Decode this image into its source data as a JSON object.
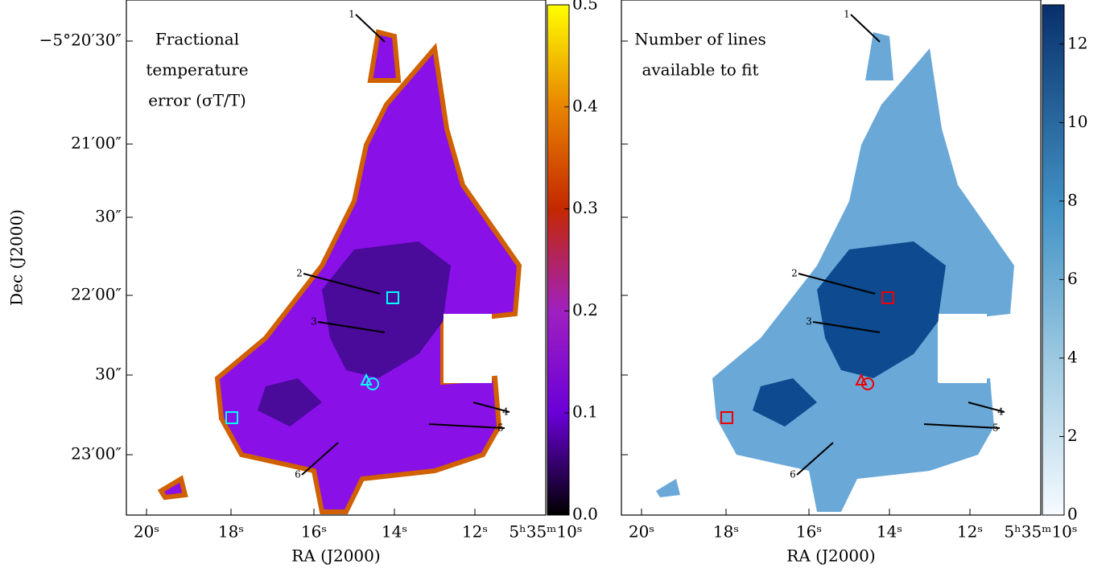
{
  "chart_data": [
    {
      "type": "heatmap",
      "annotation_lines": [
        "Fractional",
        "temperature",
        "error (σT/T)"
      ],
      "xlabel": "RA (J2000)",
      "ylabel": "Dec (J2000)",
      "xtick_labels": [
        "20ˢ",
        "18ˢ",
        "16ˢ",
        "14ˢ",
        "12ˢ",
        "5ʰ35ᵐ10ˢ"
      ],
      "ytick_labels": [
        "−5°20′30″",
        "21′00″",
        "30″",
        "22′00″",
        "30″",
        "23′00″"
      ],
      "markers": [
        "1",
        "2",
        "3",
        "4",
        "5",
        "6"
      ],
      "colormap": "gnuplot",
      "clim": [
        0,
        0.5
      ],
      "cticks": [
        {
          "value": 0,
          "label": "0.0"
        },
        0.1,
        0.2,
        0.3,
        0.4,
        0.5
      ]
    },
    {
      "type": "heatmap",
      "annotation_lines": [
        "Number of lines",
        "available to fit"
      ],
      "xlabel": "RA (J2000)",
      "xtick_labels": [
        "20ˢ",
        "18ˢ",
        "16ˢ",
        "14ˢ",
        "12ˢ",
        "5ʰ35ᵐ10ˢ"
      ],
      "markers": [
        "1",
        "2",
        "3",
        "4",
        "5",
        "6"
      ],
      "colormap": "Blues",
      "clim": [
        0,
        13
      ],
      "cticks": [
        0,
        2,
        4,
        6,
        8,
        10,
        12
      ]
    }
  ]
}
